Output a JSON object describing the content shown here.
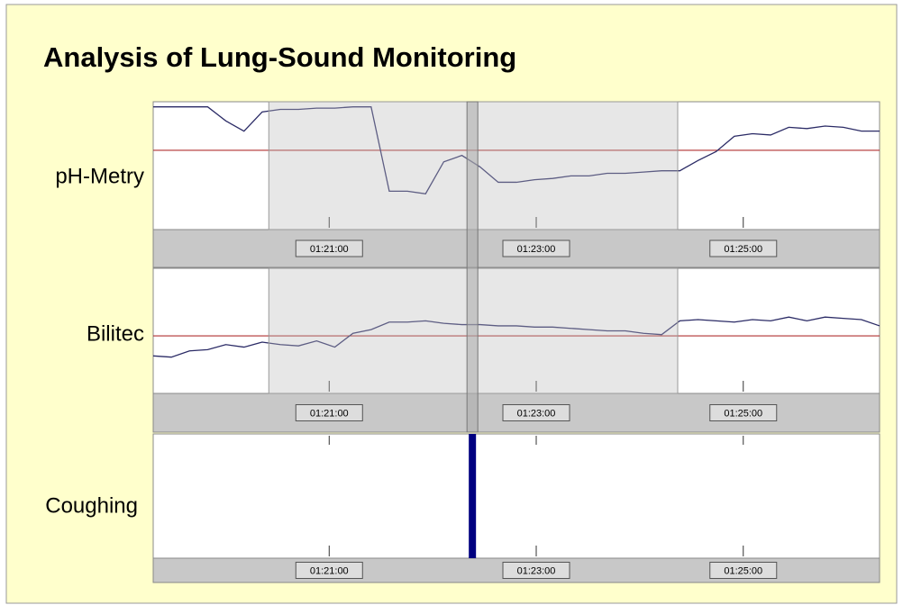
{
  "title": "Analysis of Lung-Sound Monitoring",
  "xlim": [
    4758,
    5179
  ],
  "xticks": [
    {
      "value": 4860,
      "label": "01:21:00"
    },
    {
      "value": 4980,
      "label": "01:23:00"
    },
    {
      "value": 5100,
      "label": "01:25:00"
    }
  ],
  "selection": [
    4825,
    5062
  ],
  "cursor": 4943,
  "panels": [
    {
      "label": "pH-Metry",
      "type": "line",
      "color": "#2b2b66",
      "ylim": [
        0,
        100
      ],
      "threshold": 62,
      "threshold_color": "#b03030",
      "values": [
        96,
        96,
        96,
        96,
        85,
        77,
        92,
        94,
        94,
        95,
        95,
        96,
        96,
        30,
        30,
        28,
        53,
        58,
        49,
        37,
        37,
        39,
        40,
        42,
        42,
        44,
        44,
        45,
        46,
        46,
        54,
        61,
        73,
        75,
        74,
        80,
        79,
        81,
        80,
        77,
        77
      ]
    },
    {
      "label": "Bilitec",
      "type": "line",
      "color": "#2b2b66",
      "ylim": [
        0,
        100
      ],
      "threshold": 46,
      "threshold_color": "#b03030",
      "values": [
        30,
        29,
        34,
        35,
        39,
        37,
        41,
        39,
        38,
        42,
        37,
        48,
        51,
        57,
        57,
        58,
        56,
        55,
        55,
        54,
        54,
        53,
        53,
        52,
        51,
        50,
        50,
        48,
        47,
        58,
        59,
        58,
        57,
        59,
        58,
        61,
        58,
        61,
        60,
        59,
        54
      ]
    },
    {
      "label": "Coughing",
      "type": "bar",
      "color": "#000080",
      "ylim": [
        0,
        100
      ],
      "x": [
        4943
      ],
      "values": [
        100
      ]
    }
  ]
}
